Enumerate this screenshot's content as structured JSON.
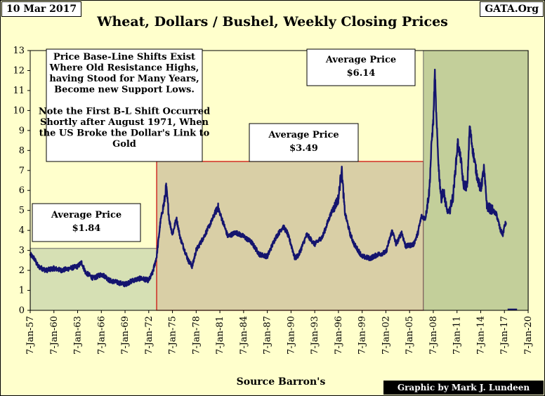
{
  "header": {
    "date": "10 Mar 2017",
    "source_site": "GATA.Org"
  },
  "footer": {
    "source": "Source Barron's",
    "credit": "Graphic by Mark J. Lundeen"
  },
  "chart_data": {
    "type": "line",
    "title": "Wheat, Dollars / Bushel, Weekly Closing Prices",
    "xlabel": "Source Barron's",
    "ylabel": "",
    "ylim": [
      0,
      13
    ],
    "xlim": [
      "1957-01-07",
      "2020-01-07"
    ],
    "yticks": [
      0,
      1,
      2,
      3,
      4,
      5,
      6,
      7,
      8,
      9,
      10,
      11,
      12,
      13
    ],
    "xticks": [
      "7-Jan-57",
      "7-Jan-60",
      "7-Jan-63",
      "7-Jan-66",
      "7-Jan-69",
      "7-Jan-72",
      "7-Jan-75",
      "7-Jan-78",
      "7-Jan-81",
      "7-Jan-84",
      "7-Jan-87",
      "7-Jan-90",
      "7-Jan-93",
      "7-Jan-96",
      "7-Jan-99",
      "7-Jan-02",
      "7-Jan-05",
      "7-Jan-08",
      "7-Jan-11",
      "7-Jan-14",
      "7-Jan-17",
      "7-Jan-20"
    ],
    "grid": false,
    "colors": {
      "line": "#14146e",
      "bg_old": "#d6e0b4",
      "bg_mid": "#d9cfa6",
      "bg_new": "#c3cf9a",
      "plot_bg": "#ffffcc",
      "mid_border": "#cc0000"
    },
    "annotations": [
      {
        "id": "base-line-note",
        "text": [
          "Price Base-Line Shifts Exist",
          "Where Old Resistance Highs,",
          "having Stood for Many Years,",
          "Become new Support Lows.",
          "",
          "Note the First B-L Shift Occurred",
          "Shortly after August 1971, When",
          "the US Broke the Dollar's Link to",
          "Gold"
        ]
      },
      {
        "id": "avg-1",
        "text": [
          "Average Price",
          "$1.84"
        ]
      },
      {
        "id": "avg-2",
        "text": [
          "Average Price",
          "$3.49"
        ]
      },
      {
        "id": "avg-3",
        "text": [
          "Average Price",
          "$6.14"
        ]
      }
    ],
    "regions": [
      {
        "name": "period-1",
        "start": "1957-01-07",
        "end": "1972-12-31",
        "avg": 1.84
      },
      {
        "name": "period-2",
        "start": "1972-12-31",
        "end": "2006-09-30",
        "avg": 3.49
      },
      {
        "name": "period-3",
        "start": "2006-09-30",
        "end": "2020-01-07",
        "avg": 6.14
      }
    ],
    "series": [
      {
        "values": [
          [
            1957.0,
            2.8
          ],
          [
            1957.5,
            2.6
          ],
          [
            1958.0,
            2.2
          ],
          [
            1959.0,
            2.0
          ],
          [
            1960.0,
            2.1
          ],
          [
            1961.0,
            2.0
          ],
          [
            1962.0,
            2.1
          ],
          [
            1963.0,
            2.2
          ],
          [
            1963.5,
            2.4
          ],
          [
            1964.0,
            1.9
          ],
          [
            1965.0,
            1.6
          ],
          [
            1966.0,
            1.8
          ],
          [
            1966.5,
            1.7
          ],
          [
            1967.0,
            1.5
          ],
          [
            1968.0,
            1.4
          ],
          [
            1969.0,
            1.3
          ],
          [
            1970.0,
            1.5
          ],
          [
            1971.0,
            1.6
          ],
          [
            1972.0,
            1.5
          ],
          [
            1972.5,
            1.9
          ],
          [
            1973.0,
            2.7
          ],
          [
            1973.5,
            4.5
          ],
          [
            1974.0,
            5.5
          ],
          [
            1974.2,
            6.2
          ],
          [
            1974.6,
            4.5
          ],
          [
            1975.0,
            3.8
          ],
          [
            1975.5,
            4.6
          ],
          [
            1976.0,
            3.6
          ],
          [
            1977.0,
            2.5
          ],
          [
            1977.5,
            2.2
          ],
          [
            1978.0,
            3.0
          ],
          [
            1979.0,
            3.7
          ],
          [
            1980.0,
            4.5
          ],
          [
            1980.7,
            5.2
          ],
          [
            1981.5,
            4.3
          ],
          [
            1982.0,
            3.7
          ],
          [
            1983.0,
            3.9
          ],
          [
            1984.0,
            3.7
          ],
          [
            1985.0,
            3.4
          ],
          [
            1986.0,
            2.8
          ],
          [
            1987.0,
            2.7
          ],
          [
            1988.0,
            3.6
          ],
          [
            1989.0,
            4.2
          ],
          [
            1989.5,
            3.9
          ],
          [
            1990.0,
            3.3
          ],
          [
            1990.5,
            2.6
          ],
          [
            1991.0,
            2.8
          ],
          [
            1992.0,
            3.8
          ],
          [
            1993.0,
            3.3
          ],
          [
            1994.0,
            3.7
          ],
          [
            1995.0,
            4.8
          ],
          [
            1996.0,
            5.6
          ],
          [
            1996.4,
            7.1
          ],
          [
            1996.8,
            4.9
          ],
          [
            1997.5,
            3.8
          ],
          [
            1998.0,
            3.3
          ],
          [
            1999.0,
            2.7
          ],
          [
            2000.0,
            2.6
          ],
          [
            2001.0,
            2.8
          ],
          [
            2002.0,
            2.9
          ],
          [
            2002.8,
            4.0
          ],
          [
            2003.3,
            3.3
          ],
          [
            2004.0,
            3.9
          ],
          [
            2004.5,
            3.2
          ],
          [
            2005.5,
            3.3
          ],
          [
            2006.0,
            3.8
          ],
          [
            2006.5,
            4.7
          ],
          [
            2007.0,
            4.6
          ],
          [
            2007.5,
            6.0
          ],
          [
            2007.8,
            8.5
          ],
          [
            2008.0,
            9.5
          ],
          [
            2008.2,
            11.9
          ],
          [
            2008.4,
            9.5
          ],
          [
            2008.7,
            7.0
          ],
          [
            2009.0,
            5.6
          ],
          [
            2009.3,
            6.0
          ],
          [
            2009.7,
            5.0
          ],
          [
            2010.0,
            4.9
          ],
          [
            2010.5,
            5.7
          ],
          [
            2010.9,
            7.5
          ],
          [
            2011.1,
            8.4
          ],
          [
            2011.5,
            7.5
          ],
          [
            2011.8,
            6.3
          ],
          [
            2012.3,
            6.2
          ],
          [
            2012.6,
            9.2
          ],
          [
            2013.0,
            8.0
          ],
          [
            2013.5,
            6.8
          ],
          [
            2014.0,
            6.0
          ],
          [
            2014.4,
            7.1
          ],
          [
            2014.8,
            5.2
          ],
          [
            2015.5,
            5.0
          ],
          [
            2016.0,
            4.8
          ],
          [
            2016.5,
            4.0
          ],
          [
            2016.8,
            3.8
          ],
          [
            2017.0,
            4.2
          ],
          [
            2017.2,
            4.4
          ]
        ]
      }
    ]
  }
}
